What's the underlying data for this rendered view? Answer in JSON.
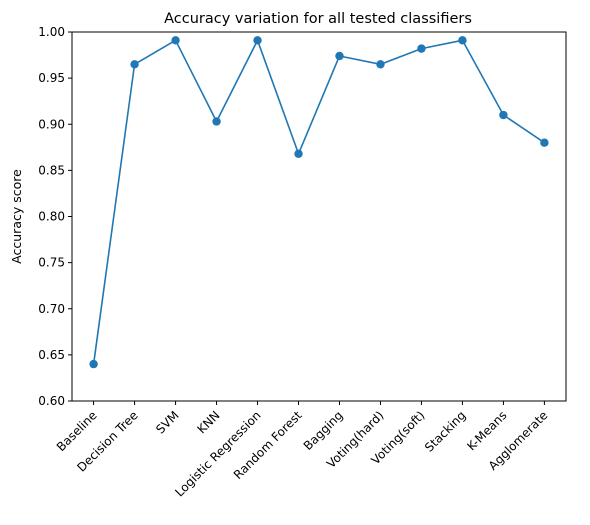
{
  "chart_data": {
    "type": "line",
    "title": "Accuracy variation for all tested classifiers",
    "xlabel": "",
    "ylabel": "Accuracy score",
    "ylim": [
      0.6,
      1.0
    ],
    "yticks": [
      "0.60",
      "0.65",
      "0.70",
      "0.75",
      "0.80",
      "0.85",
      "0.90",
      "0.95",
      "1.00"
    ],
    "grid": false,
    "categories": [
      "Baseline",
      "Decision Tree",
      "SVM",
      "KNN",
      "Logistic Regression",
      "Random Forest",
      "Bagging",
      "Voting(hard)",
      "Voting(soft)",
      "Stacking",
      "K-Means",
      "Agglomerate"
    ],
    "series": [
      {
        "values": [
          0.64,
          0.965,
          0.991,
          0.903,
          0.991,
          0.868,
          0.974,
          0.965,
          0.982,
          0.991,
          0.91,
          0.88
        ],
        "color": "#1f77b4",
        "marker": "circle"
      }
    ]
  }
}
